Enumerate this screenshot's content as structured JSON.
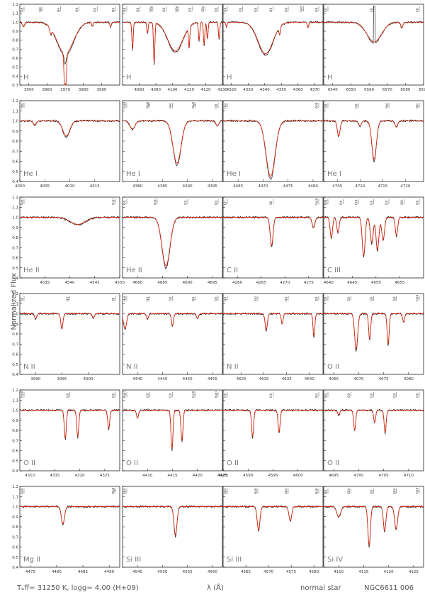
{
  "figure": {
    "ylabel": "Normalized Flux",
    "footer_left": "Tₑff= 31250 K, logg= 4.00 (H+09)",
    "footer_mid": "λ (Å)",
    "footer_right_1": "normal star",
    "footer_right_2": "NGC6611 006"
  },
  "colors": {
    "observed": "#000000",
    "model": "#d62a10",
    "frame": "#000000",
    "label": "#777777"
  },
  "chart_data": [
    {
      "type": "line",
      "ion": "H",
      "ylim": [
        0.3,
        1.2
      ],
      "yticks": [
        0.3,
        0.4,
        0.5,
        0.6,
        0.7,
        0.8,
        0.9,
        1.0,
        1.1,
        1.2
      ],
      "xlim": [
        3945,
        4000
      ],
      "xticks": [
        3950,
        3960,
        3970,
        3980,
        3990
      ],
      "lines": [
        {
          "w": 3947,
          "d": 0.05,
          "s": 0.6
        },
        {
          "w": 3962,
          "d": 0.06,
          "s": 0.5
        },
        {
          "w": 3970,
          "d": 0.62,
          "s": 0.5,
          "obs": 0.1
        },
        {
          "w": 3970,
          "d": 0.35,
          "s": 4.5
        },
        {
          "w": 3985,
          "d": 0.04,
          "s": 0.4
        },
        {
          "w": 3995,
          "d": 0.05,
          "s": 0.4
        }
      ],
      "line_ids": [
        "OII",
        "SiII",
        "He",
        "OII",
        "OII",
        "NII"
      ]
    },
    {
      "type": "line",
      "ion": "H",
      "ylim": [
        0.3,
        1.2
      ],
      "yticks": [
        0.3,
        0.4,
        0.5,
        0.6,
        0.7,
        0.8,
        0.9,
        1.0,
        1.1,
        1.2
      ],
      "xlim": [
        4070,
        4130
      ],
      "xticks": [
        4080,
        4090,
        4100,
        4110,
        4120,
        4130
      ],
      "lines": [
        {
          "w": 4076,
          "d": 0.3,
          "s": 0.4
        },
        {
          "w": 4085,
          "d": 0.12,
          "s": 0.4
        },
        {
          "w": 4089,
          "d": 0.45,
          "s": 0.4
        },
        {
          "w": 4101.7,
          "d": 0.32,
          "s": 4.5
        },
        {
          "w": 4110,
          "d": 0.22,
          "s": 0.4
        },
        {
          "w": 4116,
          "d": 0.2,
          "s": 0.4
        },
        {
          "w": 4119,
          "d": 0.25,
          "s": 0.4
        },
        {
          "w": 4121,
          "d": 0.18,
          "s": 0.4
        },
        {
          "w": 4128,
          "d": 0.18,
          "s": 0.4
        }
      ],
      "line_ids": [
        "OII",
        "OII",
        "SiIV",
        "OII",
        "SiIV",
        "OII",
        "SiIV",
        "OII"
      ]
    },
    {
      "type": "line",
      "ion": "H",
      "ylim": [
        0.3,
        1.2
      ],
      "yticks": [
        0.3,
        0.4,
        0.5,
        0.6,
        0.7,
        0.8,
        0.9,
        1.0,
        1.1,
        1.2
      ],
      "xlim": [
        4315,
        4375
      ],
      "xticks": [
        4320,
        4330,
        4340,
        4350,
        4360,
        4370
      ],
      "lines": [
        {
          "w": 4317,
          "d": 0.05,
          "s": 0.4
        },
        {
          "w": 4340.5,
          "d": 0.35,
          "s": 4.5
        },
        {
          "w": 4349,
          "d": 0.08,
          "s": 0.4
        },
        {
          "w": 4366,
          "d": 0.06,
          "s": 0.4
        }
      ],
      "line_ids": [
        "OII",
        "OII",
        "OII",
        "OII",
        "OII",
        "SiIII",
        "OII"
      ]
    },
    {
      "type": "line",
      "ion": "H",
      "ylim": [
        0.3,
        1.2
      ],
      "yticks": [
        0.3,
        0.4,
        0.5,
        0.6,
        0.7,
        0.8,
        0.9,
        1.0,
        1.1,
        1.2
      ],
      "xlim": [
        6535,
        6590
      ],
      "xticks": [
        6540,
        6550,
        6560,
        6570,
        6580,
        6590
      ],
      "lines": [
        {
          "w": 6562.8,
          "d": 0.22,
          "s": 4.0
        },
        {
          "w": 6578,
          "d": 0.06,
          "s": 0.6
        }
      ],
      "line_ids": [
        "CII",
        "CII",
        "CII"
      ]
    },
    {
      "type": "line",
      "ion": "He I",
      "ylim": [
        0.4,
        1.2
      ],
      "yticks": [
        0.4,
        0.5,
        0.6,
        0.7,
        0.8,
        0.9,
        1.0,
        1.1,
        1.2
      ],
      "xlim": [
        4000,
        4020
      ],
      "xticks": [
        4000,
        4005,
        4010,
        4015
      ],
      "lines": [
        {
          "w": 4009.3,
          "d": 0.15,
          "s": 0.7
        },
        {
          "w": 4003,
          "d": 0.04,
          "s": 0.3
        }
      ],
      "line_ids": [
        "HeI"
      ]
    },
    {
      "type": "line",
      "ion": "He I",
      "ylim": [
        0.4,
        1.2
      ],
      "yticks": [
        0.4,
        0.5,
        0.6,
        0.7,
        0.8,
        0.9,
        1.0,
        1.1,
        1.2
      ],
      "xlim": [
        4377,
        4397
      ],
      "xticks": [
        4380,
        4385,
        4390,
        4395
      ],
      "lines": [
        {
          "w": 4387.9,
          "d": 0.42,
          "s": 0.8
        },
        {
          "w": 4379,
          "d": 0.08,
          "s": 0.5
        },
        {
          "w": 4396,
          "d": 0.05,
          "s": 0.3
        }
      ],
      "line_ids": [
        "FeIII",
        "MgII",
        "HeI",
        "MgII",
        "OII"
      ]
    },
    {
      "type": "line",
      "ion": "He I",
      "ylim": [
        0.4,
        1.2
      ],
      "yticks": [
        0.4,
        0.5,
        0.6,
        0.7,
        0.8,
        0.9,
        1.0,
        1.1,
        1.2
      ],
      "xlim": [
        4462,
        4482
      ],
      "xticks": [
        4465,
        4470,
        4475,
        4480
      ],
      "lines": [
        {
          "w": 4471.5,
          "d": 0.55,
          "s": 0.9
        }
      ],
      "line_ids": [
        "HeI",
        "AlIII"
      ]
    },
    {
      "type": "line",
      "ion": "He I",
      "ylim": [
        0.4,
        1.2
      ],
      "yticks": [
        0.4,
        0.5,
        0.6,
        0.7,
        0.8,
        0.9,
        1.0,
        1.1,
        1.2
      ],
      "xlim": [
        4702,
        4724
      ],
      "xticks": [
        4705,
        4710,
        4715,
        4720
      ],
      "lines": [
        {
          "w": 4713.1,
          "d": 0.38,
          "s": 0.5
        },
        {
          "w": 4705.3,
          "d": 0.15,
          "s": 0.3
        },
        {
          "w": 4710,
          "d": 0.05,
          "s": 0.3
        },
        {
          "w": 4718,
          "d": 0.06,
          "s": 0.3
        }
      ],
      "line_ids": [
        "OII",
        "OII",
        "HeI",
        "SiII"
      ]
    },
    {
      "type": "line",
      "ion": "He II",
      "ylim": [
        0.4,
        1.2
      ],
      "yticks": [
        0.4,
        0.5,
        0.6,
        0.7,
        0.8,
        0.9,
        1.0,
        1.1,
        1.2
      ],
      "xlim": [
        4530,
        4550
      ],
      "xticks": [
        4535,
        4540,
        4545,
        4550
      ],
      "lines": [
        {
          "w": 4541.6,
          "d": 0.07,
          "s": 1.5
        }
      ],
      "line_ids": [
        "NeII",
        "HeII"
      ]
    },
    {
      "type": "line",
      "ion": "He II",
      "ylim": [
        0.4,
        1.2
      ],
      "yticks": [
        0.4,
        0.5,
        0.6,
        0.7,
        0.8,
        0.9,
        1.0,
        1.1,
        1.2
      ],
      "xlim": [
        4677,
        4697
      ],
      "xticks": [
        4680,
        4685,
        4690,
        4695
      ],
      "lines": [
        {
          "w": 4685.7,
          "d": 0.48,
          "s": 0.8
        }
      ],
      "line_ids": [
        "OII",
        "HeII",
        "OII",
        "NII"
      ]
    },
    {
      "type": "line",
      "ion": "C II",
      "ylim": [
        0.4,
        1.2
      ],
      "yticks": [
        0.4,
        0.5,
        0.6,
        0.7,
        0.8,
        0.9,
        1.0,
        1.1,
        1.2
      ],
      "xlim": [
        4257,
        4278
      ],
      "xticks": [
        4260,
        4265,
        4270,
        4275
      ],
      "lines": [
        {
          "w": 4267.2,
          "d": 0.28,
          "s": 0.3
        },
        {
          "w": 4276,
          "d": 0.1,
          "s": 0.3
        }
      ],
      "line_ids": [
        "CII",
        "SII",
        "FeIII"
      ]
    },
    {
      "type": "line",
      "ion": "C III",
      "ylim": [
        0.4,
        1.2
      ],
      "yticks": [
        0.4,
        0.5,
        0.6,
        0.7,
        0.8,
        0.9,
        1.0,
        1.1,
        1.2
      ],
      "xlim": [
        4639,
        4660
      ],
      "xticks": [
        4640,
        4645,
        4650,
        4655
      ],
      "lines": [
        {
          "w": 4640.6,
          "d": 0.2,
          "s": 0.25
        },
        {
          "w": 4642,
          "d": 0.15,
          "s": 0.25
        },
        {
          "w": 4647.4,
          "d": 0.38,
          "s": 0.3
        },
        {
          "w": 4649.1,
          "d": 0.25,
          "s": 0.3
        },
        {
          "w": 4650.3,
          "d": 0.32,
          "s": 0.3
        },
        {
          "w": 4651.5,
          "d": 0.22,
          "s": 0.3
        },
        {
          "w": 4654.3,
          "d": 0.18,
          "s": 0.25
        }
      ],
      "line_ids": [
        "NIII",
        "OII",
        "CIII",
        "OII",
        "OII",
        "SIV",
        "OII"
      ]
    },
    {
      "type": "line",
      "ion": "N II",
      "ylim": [
        0.4,
        1.2
      ],
      "yticks": [
        0.4,
        0.5,
        0.6,
        0.7,
        0.8,
        0.9,
        1.0,
        1.1,
        1.2
      ],
      "xlim": [
        3987,
        4006
      ],
      "xticks": [
        3990,
        3995,
        4000
      ],
      "lines": [
        {
          "w": 3995,
          "d": 0.15,
          "s": 0.2
        },
        {
          "w": 3990,
          "d": 0.05,
          "s": 0.2
        },
        {
          "w": 4001,
          "d": 0.04,
          "s": 0.2
        }
      ],
      "line_ids": [
        "SII",
        "NII",
        "SII"
      ]
    },
    {
      "type": "line",
      "ion": "N II",
      "ylim": [
        0.4,
        1.2
      ],
      "yticks": [
        0.4,
        0.5,
        0.6,
        0.7,
        0.8,
        0.9,
        1.0,
        1.1,
        1.2
      ],
      "xlim": [
        4437,
        4457
      ],
      "xticks": [
        4440,
        4445,
        4450,
        4455
      ],
      "lines": [
        {
          "w": 4437.5,
          "d": 0.15,
          "s": 0.3
        },
        {
          "w": 4442,
          "d": 0.05,
          "s": 0.2
        },
        {
          "w": 4447,
          "d": 0.12,
          "s": 0.2
        },
        {
          "w": 4452,
          "d": 0.05,
          "s": 0.2
        }
      ],
      "line_ids": [
        "HeI",
        "NII",
        "OII",
        "NII",
        "OII"
      ]
    },
    {
      "type": "line",
      "ion": "N II",
      "ylim": [
        0.4,
        1.2
      ],
      "yticks": [
        0.4,
        0.5,
        0.6,
        0.7,
        0.8,
        0.9,
        1.0,
        1.1,
        1.2
      ],
      "xlim": [
        4621,
        4643
      ],
      "xticks": [
        4625,
        4630,
        4635,
        4640
      ],
      "lines": [
        {
          "w": 4630.5,
          "d": 0.16,
          "s": 0.25
        },
        {
          "w": 4634,
          "d": 0.1,
          "s": 0.2
        },
        {
          "w": 4641,
          "d": 0.22,
          "s": 0.2
        }
      ],
      "line_ids": [
        "NII",
        "SIV",
        "NII",
        "OII"
      ]
    },
    {
      "type": "line",
      "ion": "O II",
      "ylim": [
        0.4,
        1.2
      ],
      "yticks": [
        0.4,
        0.5,
        0.6,
        0.7,
        0.8,
        0.9,
        1.0,
        1.1,
        1.2
      ],
      "xlim": [
        4063,
        4083
      ],
      "xticks": [
        4065,
        4070,
        4075,
        4080
      ],
      "lines": [
        {
          "w": 4069.5,
          "d": 0.35,
          "s": 0.3
        },
        {
          "w": 4072.2,
          "d": 0.25,
          "s": 0.2
        },
        {
          "w": 4075.9,
          "d": 0.3,
          "s": 0.2
        },
        {
          "w": 4079,
          "d": 0.08,
          "s": 0.2
        }
      ],
      "line_ids": [
        "OII",
        "OII",
        "OII",
        "OII",
        "FeIII"
      ]
    },
    {
      "type": "line",
      "ion": "O II",
      "ylim": [
        0.4,
        1.2
      ],
      "yticks": [
        0.4,
        0.5,
        0.6,
        0.7,
        0.8,
        0.9,
        1.0,
        1.1,
        1.2
      ],
      "xlim": [
        4308,
        4328
      ],
      "xticks": [
        4310,
        4315,
        4320,
        4325
      ],
      "lines": [
        {
          "w": 4317.1,
          "d": 0.28,
          "s": 0.2
        },
        {
          "w": 4319.6,
          "d": 0.26,
          "s": 0.2
        },
        {
          "w": 4325.8,
          "d": 0.18,
          "s": 0.2
        }
      ],
      "line_ids": [
        "FeIII",
        "OII",
        "OII"
      ]
    },
    {
      "type": "line",
      "ion": "O II",
      "ylim": [
        0.4,
        1.2
      ],
      "yticks": [
        0.4,
        0.5,
        0.6,
        0.7,
        0.8,
        0.9,
        1.0,
        1.1,
        1.2
      ],
      "xlim": [
        4405,
        4425
      ],
      "xticks": [
        4410,
        4415,
        4420,
        4425
      ],
      "lines": [
        {
          "w": 4414.9,
          "d": 0.38,
          "s": 0.2
        },
        {
          "w": 4416.9,
          "d": 0.3,
          "s": 0.2
        },
        {
          "w": 4408,
          "d": 0.08,
          "s": 0.2
        }
      ],
      "line_ids": [
        "NeII",
        "OII",
        "OII",
        "FeIII",
        "NeII"
      ]
    },
    {
      "type": "line",
      "ion": "O II",
      "ylim": [
        0.4,
        1.2
      ],
      "yticks": [
        0.4,
        0.5,
        0.6,
        0.7,
        0.8,
        0.9,
        1.0,
        1.1,
        1.2
      ],
      "xlim": [
        4585,
        4605
      ],
      "xticks": [
        4585,
        4590,
        4595,
        4600
      ],
      "lines": [
        {
          "w": 4590.9,
          "d": 0.26,
          "s": 0.2
        },
        {
          "w": 4596.2,
          "d": 0.22,
          "s": 0.2
        }
      ],
      "line_ids": [
        "OII",
        "OII",
        "NII"
      ]
    },
    {
      "type": "line",
      "ion": "O II",
      "ylim": [
        0.4,
        1.2
      ],
      "yticks": [
        0.4,
        0.5,
        0.6,
        0.7,
        0.8,
        0.9,
        1.0,
        1.1,
        1.2
      ],
      "xlim": [
        4693,
        4713
      ],
      "xticks": [
        4695,
        4700,
        4705,
        4710
      ],
      "lines": [
        {
          "w": 4699.2,
          "d": 0.2,
          "s": 0.2
        },
        {
          "w": 4703.2,
          "d": 0.12,
          "s": 0.2
        },
        {
          "w": 4705.3,
          "d": 0.22,
          "s": 0.2
        },
        {
          "w": 4696,
          "d": 0.05,
          "s": 0.2
        }
      ],
      "line_ids": [
        "NII",
        "OII",
        "OII",
        "OII",
        "OII"
      ]
    },
    {
      "type": "line",
      "ion": "Mg II",
      "ylim": [
        0.4,
        1.2
      ],
      "yticks": [
        0.4,
        0.5,
        0.6,
        0.7,
        0.8,
        0.9,
        1.0,
        1.1,
        1.2
      ],
      "xlim": [
        4473,
        4492
      ],
      "xticks": [
        4475,
        4480,
        4485,
        4490
      ],
      "lines": [
        {
          "w": 4481.2,
          "d": 0.17,
          "s": 0.3
        }
      ],
      "line_ids": [
        "AlIII",
        "MgII"
      ]
    },
    {
      "type": "line",
      "ion": "Si III",
      "ylim": [
        0.4,
        1.2
      ],
      "yticks": [
        0.4,
        0.5,
        0.6,
        0.7,
        0.8,
        0.9,
        1.0,
        1.1,
        1.2
      ],
      "xlim": [
        4542,
        4562
      ],
      "xticks": [
        4545,
        4550,
        4555,
        4560
      ],
      "lines": [
        {
          "w": 4552.6,
          "d": 0.28,
          "s": 0.3
        }
      ],
      "line_ids": [
        "SiIII"
      ]
    },
    {
      "type": "line",
      "ion": "Si III",
      "ylim": [
        0.4,
        1.2
      ],
      "yticks": [
        0.4,
        0.5,
        0.6,
        0.7,
        0.8,
        0.9,
        1.0,
        1.1,
        1.2
      ],
      "xlim": [
        4560,
        4582
      ],
      "xticks": [
        4565,
        4570,
        4575,
        4580
      ],
      "lines": [
        {
          "w": 4567.8,
          "d": 0.23,
          "s": 0.3
        },
        {
          "w": 4574.8,
          "d": 0.14,
          "s": 0.3
        }
      ],
      "line_ids": [
        "SiIII",
        "NeII",
        "SiIII",
        "NeII"
      ]
    },
    {
      "type": "line",
      "ion": "Si IV",
      "ylim": [
        0.4,
        1.2
      ],
      "yticks": [
        0.4,
        0.5,
        0.6,
        0.7,
        0.8,
        0.9,
        1.0,
        1.1,
        1.2
      ],
      "xlim": [
        4107,
        4127
      ],
      "xticks": [
        4110,
        4115,
        4120,
        4125
      ],
      "lines": [
        {
          "w": 4116.1,
          "d": 0.38,
          "s": 0.25
        },
        {
          "w": 4119.2,
          "d": 0.24,
          "s": 0.25
        },
        {
          "w": 4121.5,
          "d": 0.22,
          "s": 0.3
        },
        {
          "w": 4110,
          "d": 0.1,
          "s": 0.4
        }
      ],
      "line_ids": [
        "NII",
        "SiIV",
        "OII",
        "SiIV",
        "FeIII"
      ]
    }
  ]
}
